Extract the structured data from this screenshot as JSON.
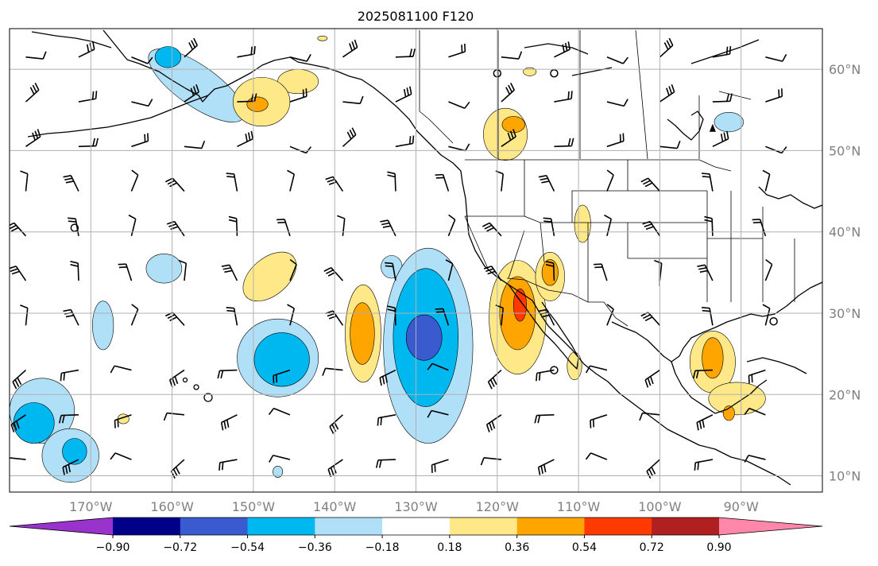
{
  "figure": {
    "title": "2025081100 F120"
  },
  "map": {
    "projection": "cylindrical",
    "lon_range": [
      -180,
      -80
    ],
    "lat_range": [
      8,
      65
    ],
    "lon_ticks": [
      {
        "value": -170,
        "label": "170°W"
      },
      {
        "value": -160,
        "label": "160°W"
      },
      {
        "value": -150,
        "label": "150°W"
      },
      {
        "value": -140,
        "label": "140°W"
      },
      {
        "value": -130,
        "label": "130°W"
      },
      {
        "value": -120,
        "label": "120°W"
      },
      {
        "value": -110,
        "label": "110°W"
      },
      {
        "value": -100,
        "label": "100°W"
      },
      {
        "value": -90,
        "label": "90°W"
      }
    ],
    "lat_ticks": [
      {
        "value": 10,
        "label": "10°N"
      },
      {
        "value": 20,
        "label": "20°N"
      },
      {
        "value": 30,
        "label": "30°N"
      },
      {
        "value": 40,
        "label": "40°N"
      },
      {
        "value": 50,
        "label": "50°N"
      },
      {
        "value": 60,
        "label": "60°N"
      }
    ],
    "grid": true,
    "colors": {
      "ocean": "#ffffff",
      "coastline": "#000000",
      "gridline": "#b0b0b0",
      "tick_label": "#808080"
    }
  },
  "colorbar": {
    "orientation": "horizontal",
    "extend": "both",
    "ticks": [
      "−0.90",
      "−0.72",
      "−0.54",
      "−0.36",
      "−0.18",
      "0.18",
      "0.36",
      "0.54",
      "0.72",
      "0.90"
    ],
    "levels": [
      -0.9,
      -0.72,
      -0.54,
      -0.36,
      -0.18,
      0.18,
      0.36,
      0.54,
      0.72,
      0.9
    ],
    "under_color": "#9933cc",
    "over_color": "#ff88aa",
    "bin_colors": [
      "#000088",
      "#3a5bd0",
      "#00b8f0",
      "#b0e0f8",
      "#ffffff",
      "#ffe888",
      "#ffa500",
      "#ff3a00",
      "#b02020"
    ]
  },
  "contour_regions": [
    {
      "value": -0.27,
      "lon": -168.5,
      "lat": 28.5,
      "rx": 1.3,
      "ry": 3.0
    },
    {
      "value": -0.27,
      "lon": -157,
      "lat": 58,
      "rx": 7,
      "ry": 2.5,
      "rotate": 35
    },
    {
      "value": -0.45,
      "lon": -160.5,
      "lat": 61.5,
      "rx": 1.6,
      "ry": 1.3
    },
    {
      "value": -0.27,
      "lon": -176,
      "lat": 18,
      "rx": 4,
      "ry": 4
    },
    {
      "value": -0.45,
      "lon": -177,
      "lat": 16.5,
      "rx": 2.5,
      "ry": 2.5
    },
    {
      "value": -0.27,
      "lon": -172.5,
      "lat": 12.5,
      "rx": 3.5,
      "ry": 3.3
    },
    {
      "value": -0.45,
      "lon": -172,
      "lat": 13,
      "rx": 1.5,
      "ry": 1.6
    },
    {
      "value": -0.27,
      "lon": -161,
      "lat": 35.5,
      "rx": 2.2,
      "ry": 1.8
    },
    {
      "value": -0.27,
      "lon": -147,
      "lat": 24.5,
      "rx": 5,
      "ry": 4.8
    },
    {
      "value": -0.45,
      "lon": -146.5,
      "lat": 24.3,
      "rx": 3.4,
      "ry": 3.3
    },
    {
      "value": -0.27,
      "lon": -133,
      "lat": 35.7,
      "rx": 1.3,
      "ry": 1.4
    },
    {
      "value": -0.27,
      "lon": -128.5,
      "lat": 26,
      "rx": 5.5,
      "ry": 12
    },
    {
      "value": -0.45,
      "lon": -128.8,
      "lat": 27,
      "rx": 4,
      "ry": 8.5
    },
    {
      "value": -0.63,
      "lon": -129,
      "lat": 27,
      "rx": 2.2,
      "ry": 2.8
    },
    {
      "value": -0.27,
      "lon": -91.5,
      "lat": 53.5,
      "rx": 1.8,
      "ry": 1.2
    },
    {
      "value": -0.27,
      "lon": -147,
      "lat": 10.5,
      "rx": 0.6,
      "ry": 0.7
    },
    {
      "value": 0.27,
      "lon": -148,
      "lat": 34.5,
      "rx": 3.8,
      "ry": 2.3,
      "rotate": -40
    },
    {
      "value": 0.27,
      "lon": -144.5,
      "lat": 58.5,
      "rx": 2.5,
      "ry": 1.5
    },
    {
      "value": 0.27,
      "lon": -149,
      "lat": 56,
      "rx": 3.5,
      "ry": 3
    },
    {
      "value": 0.45,
      "lon": -149.5,
      "lat": 55.7,
      "rx": 1.3,
      "ry": 0.9
    },
    {
      "value": 0.27,
      "lon": -136.5,
      "lat": 27.5,
      "rx": 2.2,
      "ry": 6
    },
    {
      "value": 0.45,
      "lon": -136.6,
      "lat": 27.5,
      "rx": 1.5,
      "ry": 3.8
    },
    {
      "value": 0.27,
      "lon": -119,
      "lat": 52,
      "rx": 2.7,
      "ry": 3.2
    },
    {
      "value": 0.45,
      "lon": -118,
      "lat": 53.2,
      "rx": 1.4,
      "ry": 1.0
    },
    {
      "value": 0.27,
      "lon": -117.5,
      "lat": 29.5,
      "rx": 3.5,
      "ry": 7
    },
    {
      "value": 0.45,
      "lon": -117.5,
      "lat": 30,
      "rx": 2.2,
      "ry": 4.5
    },
    {
      "value": 0.63,
      "lon": -117.2,
      "lat": 31,
      "rx": 0.8,
      "ry": 2
    },
    {
      "value": 0.27,
      "lon": -113.5,
      "lat": 34.5,
      "rx": 1.8,
      "ry": 3
    },
    {
      "value": 0.45,
      "lon": -113.5,
      "lat": 35,
      "rx": 1,
      "ry": 1.6
    },
    {
      "value": 0.27,
      "lon": -109.5,
      "lat": 41,
      "rx": 1,
      "ry": 2.3
    },
    {
      "value": 0.27,
      "lon": -110.5,
      "lat": 23.5,
      "rx": 0.9,
      "ry": 1.7
    },
    {
      "value": 0.27,
      "lon": -93.5,
      "lat": 24,
      "rx": 2.8,
      "ry": 3.8
    },
    {
      "value": 0.45,
      "lon": -93.5,
      "lat": 24.5,
      "rx": 1.3,
      "ry": 2.5
    },
    {
      "value": 0.27,
      "lon": -90.5,
      "lat": 19.5,
      "rx": 3.5,
      "ry": 2
    },
    {
      "value": 0.45,
      "lon": -91.5,
      "lat": 17.7,
      "rx": 0.7,
      "ry": 0.9
    },
    {
      "value": 0.27,
      "lon": -166,
      "lat": 17,
      "rx": 0.7,
      "ry": 0.6
    },
    {
      "value": 0.27,
      "lon": -116,
      "lat": 59.7,
      "rx": 0.8,
      "ry": 0.5
    },
    {
      "value": 0.27,
      "lon": -141.5,
      "lat": 63.8,
      "rx": 0.6,
      "ry": 0.3
    }
  ],
  "calm_markers": [
    {
      "lon": -172,
      "lat": 40.5
    },
    {
      "lon": -120,
      "lat": 59.5
    },
    {
      "lon": -113,
      "lat": 59.5
    },
    {
      "lon": -113,
      "lat": 23
    },
    {
      "lon": -86,
      "lat": 29
    }
  ],
  "pressure_centers": [
    {
      "lon": -93.5,
      "lat": 52.8,
      "kind": "triangle"
    }
  ]
}
